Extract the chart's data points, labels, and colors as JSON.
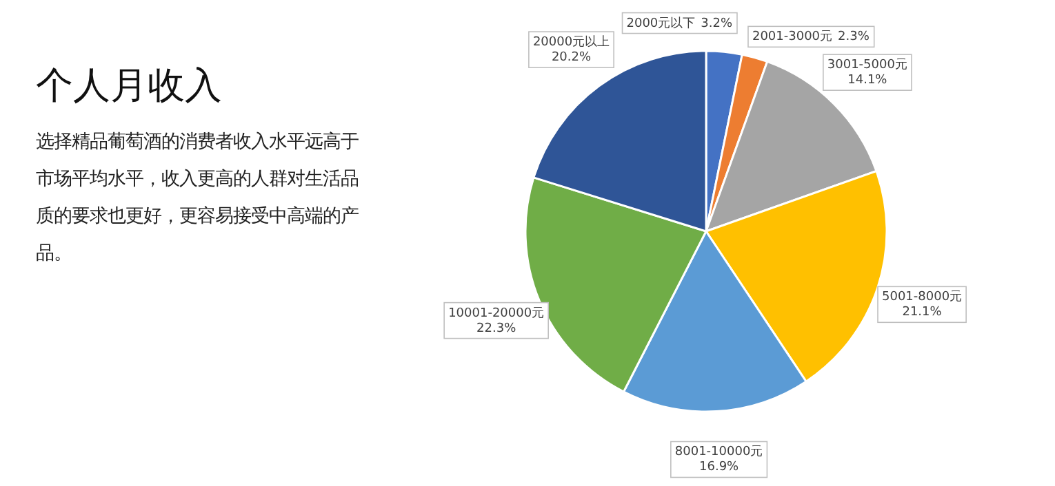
{
  "chart_data": {
    "type": "pie",
    "title": "个人月收入",
    "subtitle": "选择精品葡萄酒的消费者收入水平远高于市场平均水平，收入更高的人群对生活品质的要求也更好，更容易接受中高端的产品。",
    "categories": [
      "2000元以下",
      "2001-3000元",
      "3001-5000元",
      "5001-8000元",
      "8001-10000元",
      "10001-20000元",
      "20000元以上"
    ],
    "value_labels": [
      "3.2%",
      "2.3%",
      "14.1%",
      "21.1%",
      "16.9%",
      "22.3%",
      "20.2%"
    ],
    "values": [
      3.2,
      2.3,
      14.1,
      21.1,
      16.9,
      22.3,
      20.2
    ],
    "colors": [
      "#4472c4",
      "#ed7d31",
      "#a5a5a5",
      "#ffc000",
      "#5b9bd5",
      "#70ad47",
      "#2f5597"
    ]
  }
}
